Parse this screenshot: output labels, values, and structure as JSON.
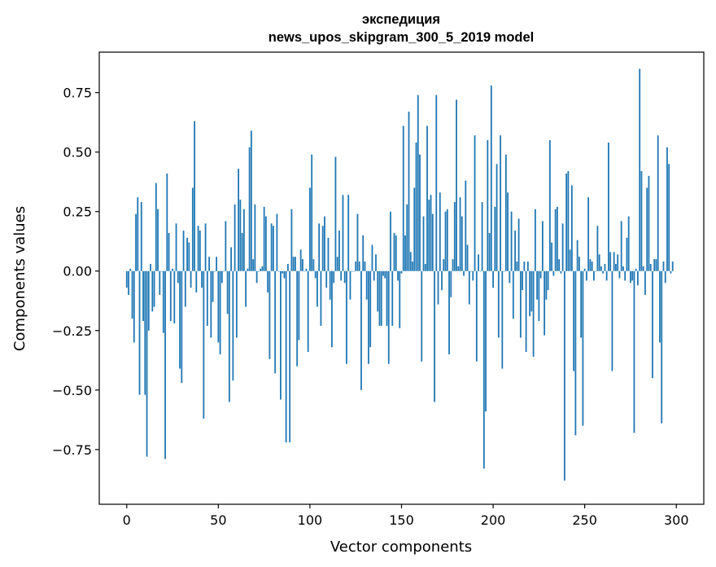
{
  "chart_data": {
    "type": "bar",
    "title_line1": "экспедиция",
    "title_line2": "news_upos_skipgram_300_5_2019 model",
    "xlabel": "Vector components",
    "ylabel": "Components values",
    "xlim": [
      -15,
      315
    ],
    "ylim": [
      -0.98,
      0.92
    ],
    "x_ticks": [
      0,
      50,
      100,
      150,
      200,
      250,
      300
    ],
    "x_tick_labels": [
      "0",
      "50",
      "100",
      "150",
      "200",
      "250",
      "300"
    ],
    "y_ticks": [
      -0.75,
      -0.5,
      -0.25,
      0.0,
      0.25,
      0.5,
      0.75
    ],
    "y_tick_labels": [
      "−0.75",
      "−0.50",
      "−0.25",
      "0.00",
      "0.25",
      "0.50",
      "0.75"
    ],
    "bar_color": "#1f77b4",
    "values": [
      -0.07,
      -0.1,
      0.01,
      -0.2,
      -0.3,
      0.24,
      0.31,
      -0.52,
      0.29,
      -0.21,
      -0.52,
      -0.78,
      -0.25,
      0.03,
      -0.17,
      -0.15,
      0.37,
      0.26,
      -0.1,
      0.0,
      -0.26,
      -0.79,
      0.41,
      0.16,
      -0.21,
      0.01,
      -0.22,
      0.2,
      -0.05,
      -0.41,
      -0.47,
      0.17,
      -0.15,
      0.14,
      0.12,
      -0.07,
      0.35,
      0.63,
      -0.09,
      0.19,
      0.17,
      -0.07,
      -0.62,
      0.2,
      -0.23,
      0.06,
      -0.28,
      -0.13,
      0.0,
      0.06,
      -0.3,
      -0.35,
      -0.05,
      0.0,
      0.21,
      -0.18,
      -0.55,
      0.1,
      -0.46,
      0.28,
      -0.28,
      0.43,
      0.3,
      0.16,
      0.26,
      -0.15,
      0.01,
      0.52,
      0.59,
      0.05,
      0.28,
      -0.05,
      0.0,
      0.01,
      0.02,
      0.27,
      0.23,
      -0.09,
      -0.37,
      0.2,
      0.19,
      -0.43,
      0.24,
      0.0,
      -0.54,
      -0.01,
      -0.03,
      -0.72,
      0.03,
      -0.72,
      0.26,
      0.06,
      0.06,
      -0.4,
      -0.29,
      0.09,
      0.05,
      0.0,
      0.01,
      -0.34,
      0.35,
      0.49,
      0.05,
      -0.03,
      -0.15,
      0.2,
      -0.23,
      0.19,
      0.23,
      -0.07,
      0.14,
      -0.12,
      -0.32,
      -0.05,
      0.48,
      0.06,
      0.17,
      -0.04,
      0.32,
      -0.05,
      -0.39,
      0.32,
      -0.12,
      0.0,
      0.0,
      0.04,
      0.24,
      0.04,
      -0.5,
      0.15,
      0.04,
      -0.12,
      -0.39,
      -0.32,
      0.11,
      -0.04,
      0.07,
      -0.17,
      -0.23,
      -0.23,
      -0.02,
      -0.03,
      -0.23,
      -0.39,
      0.25,
      -0.23,
      0.16,
      0.15,
      -0.04,
      -0.24,
      -0.01,
      0.61,
      0.15,
      0.28,
      0.67,
      0.08,
      0.04,
      0.35,
      0.54,
      0.74,
      0.49,
      -0.38,
      0.23,
      0.03,
      0.61,
      0.3,
      0.32,
      0.24,
      -0.55,
      0.74,
      -0.14,
      0.33,
      -0.08,
      0.05,
      0.25,
      0.26,
      -0.35,
      -0.11,
      0.05,
      0.29,
      0.72,
      0.02,
      0.31,
      0.23,
      -0.02,
      0.38,
      0.11,
      -0.14,
      0.0,
      -0.04,
      0.57,
      -0.38,
      0.07,
      0.0,
      0.29,
      -0.83,
      -0.59,
      0.55,
      0.16,
      0.78,
      -0.07,
      0.27,
      0.45,
      -0.28,
      0.57,
      -0.41,
      0.0,
      0.49,
      0.33,
      -0.05,
      0.25,
      -0.2,
      0.17,
      0.04,
      0.22,
      -0.28,
      -0.08,
      0.04,
      -0.34,
      0.04,
      -0.19,
      -0.17,
      -0.36,
      0.26,
      -0.12,
      -0.21,
      -0.03,
      0.21,
      -0.27,
      -0.12,
      -0.08,
      0.55,
      0.12,
      -0.02,
      0.26,
      0.27,
      0.05,
      -0.01,
      0.2,
      -0.88,
      0.41,
      0.42,
      0.09,
      0.36,
      -0.42,
      -0.69,
      0.13,
      0.06,
      -0.28,
      -0.65,
      0.01,
      -0.04,
      0.31,
      0.05,
      0.04,
      -0.04,
      0.0,
      0.19,
      0.07,
      0.02,
      -0.01,
      0.03,
      -0.04,
      0.54,
      0.08,
      -0.42,
      0.08,
      0.03,
      0.07,
      -0.03,
      0.21,
      0.02,
      -0.04,
      0.14,
      0.23,
      -0.05,
      -0.04,
      -0.68,
      0.01,
      -0.06,
      0.85,
      0.42,
      0.02,
      -0.1,
      0.35,
      0.4,
      0.03,
      -0.45,
      0.05,
      0.05,
      0.57,
      -0.3,
      -0.64,
      0.04,
      -0.05,
      0.52,
      0.45,
      -0.01,
      0.04
    ]
  }
}
